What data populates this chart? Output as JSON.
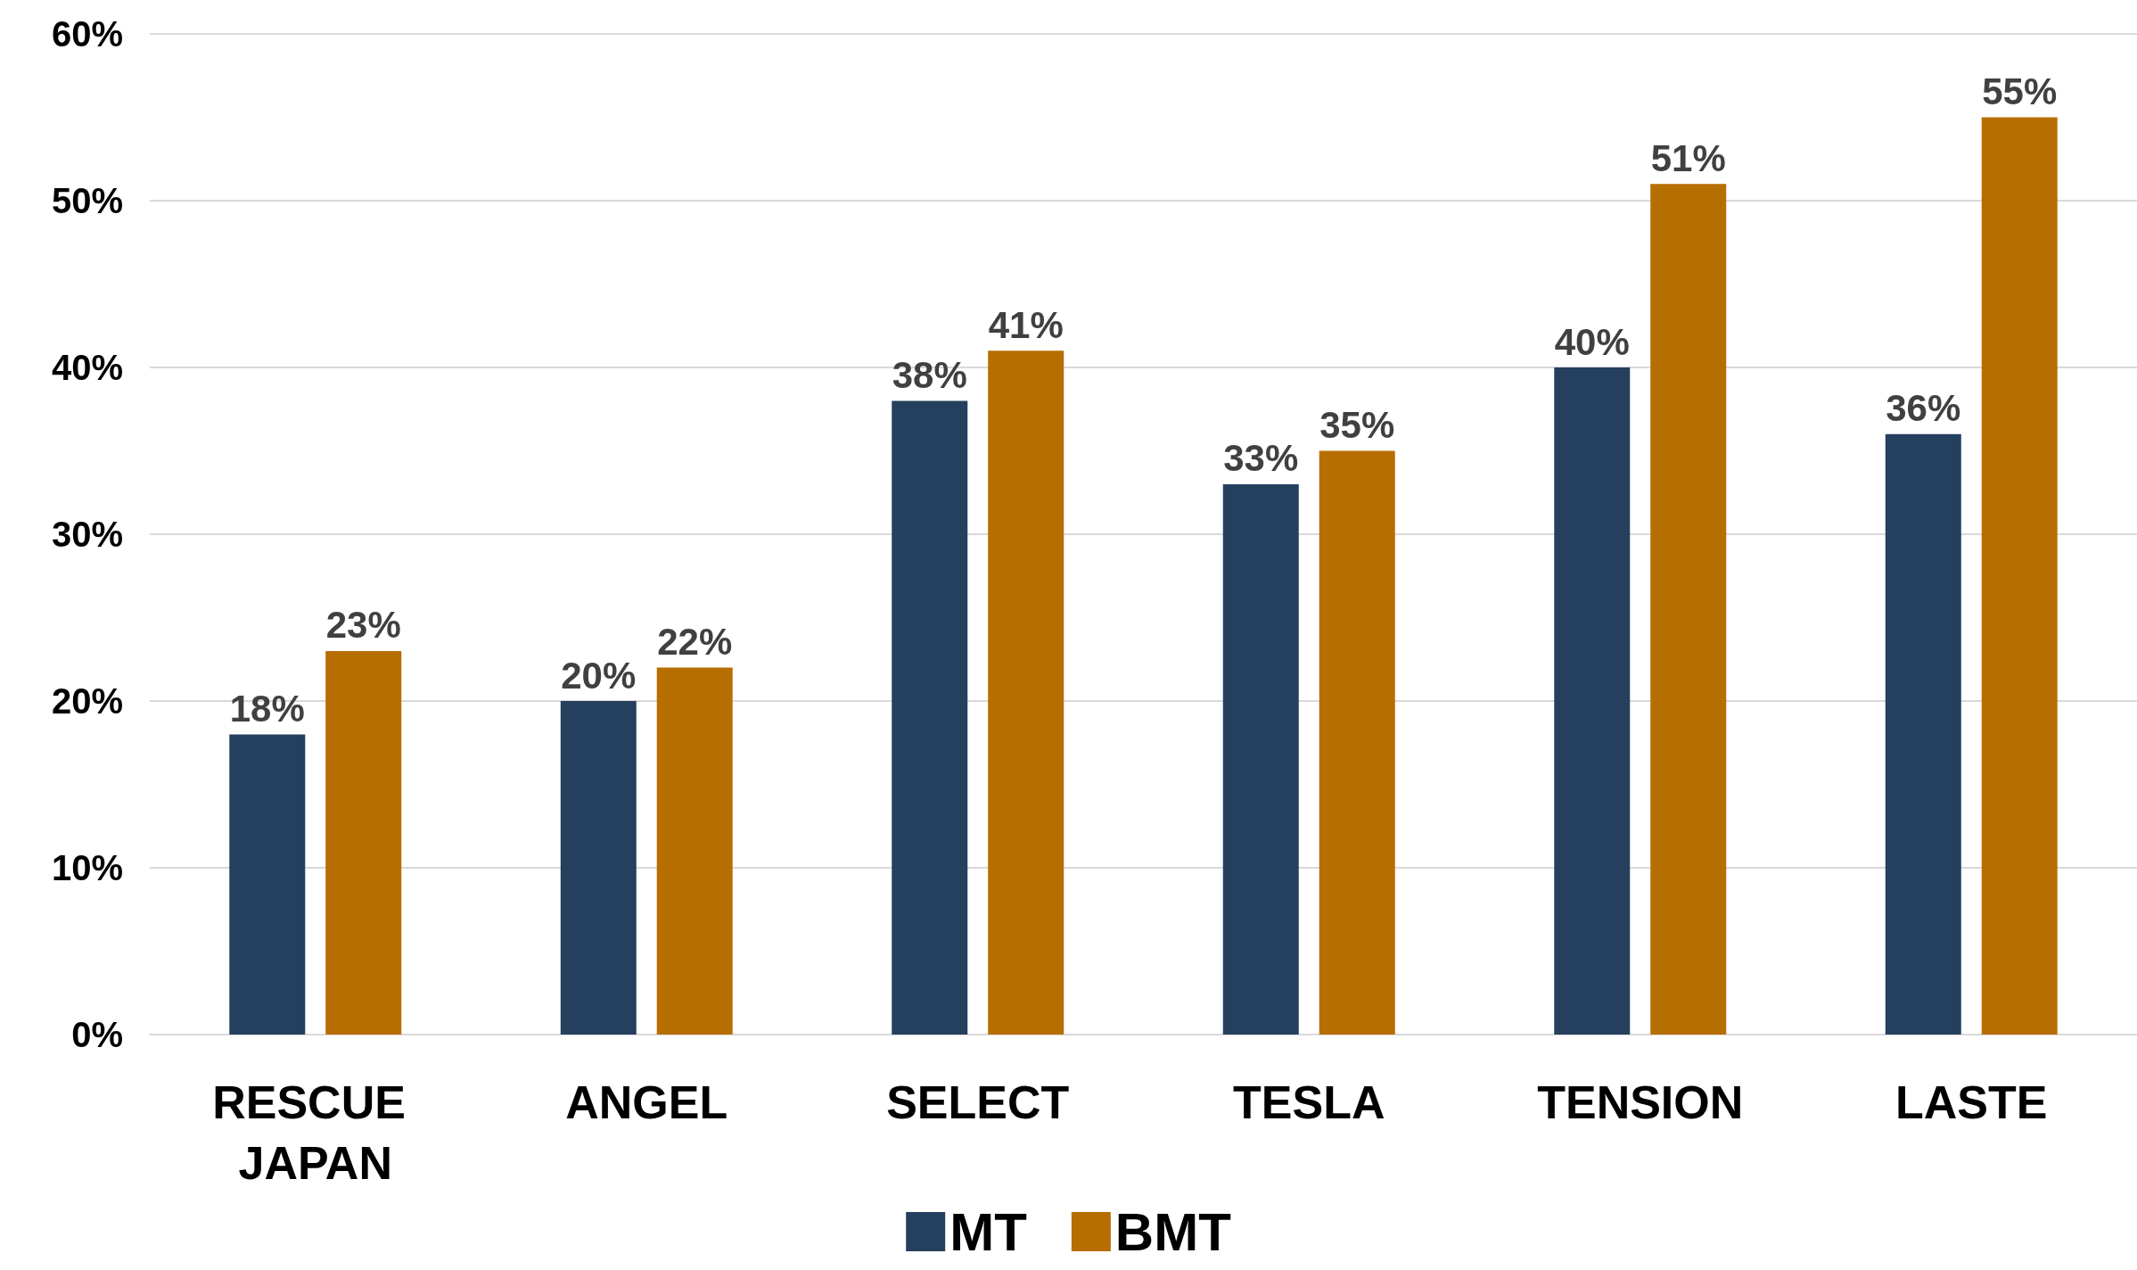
{
  "chart_data": {
    "type": "bar",
    "categories": [
      "RESCUE JAPAN",
      "ANGEL",
      "SELECT",
      "TESLA",
      "TENSION",
      "LASTE"
    ],
    "series": [
      {
        "name": "MT",
        "color": "#253f5e",
        "values": [
          18,
          20,
          38,
          33,
          40,
          36
        ],
        "value_labels": [
          "18%",
          "20%",
          "38%",
          "33%",
          "40%",
          "36%"
        ]
      },
      {
        "name": "BMT",
        "color": "#b76e00",
        "values": [
          23,
          22,
          41,
          35,
          51,
          55
        ],
        "value_labels": [
          "23%",
          "22%",
          "41%",
          "35%",
          "51%",
          "55%"
        ]
      }
    ],
    "ylim": [
      0,
      60
    ],
    "yticks": [
      {
        "value": 0,
        "label": "0%"
      },
      {
        "value": 10,
        "label": "10%"
      },
      {
        "value": 20,
        "label": "20%"
      },
      {
        "value": 30,
        "label": "30%"
      },
      {
        "value": 40,
        "label": "40%"
      },
      {
        "value": 50,
        "label": "50%"
      },
      {
        "value": 60,
        "label": "60%"
      }
    ],
    "grid": "y",
    "legend": "bottom"
  }
}
